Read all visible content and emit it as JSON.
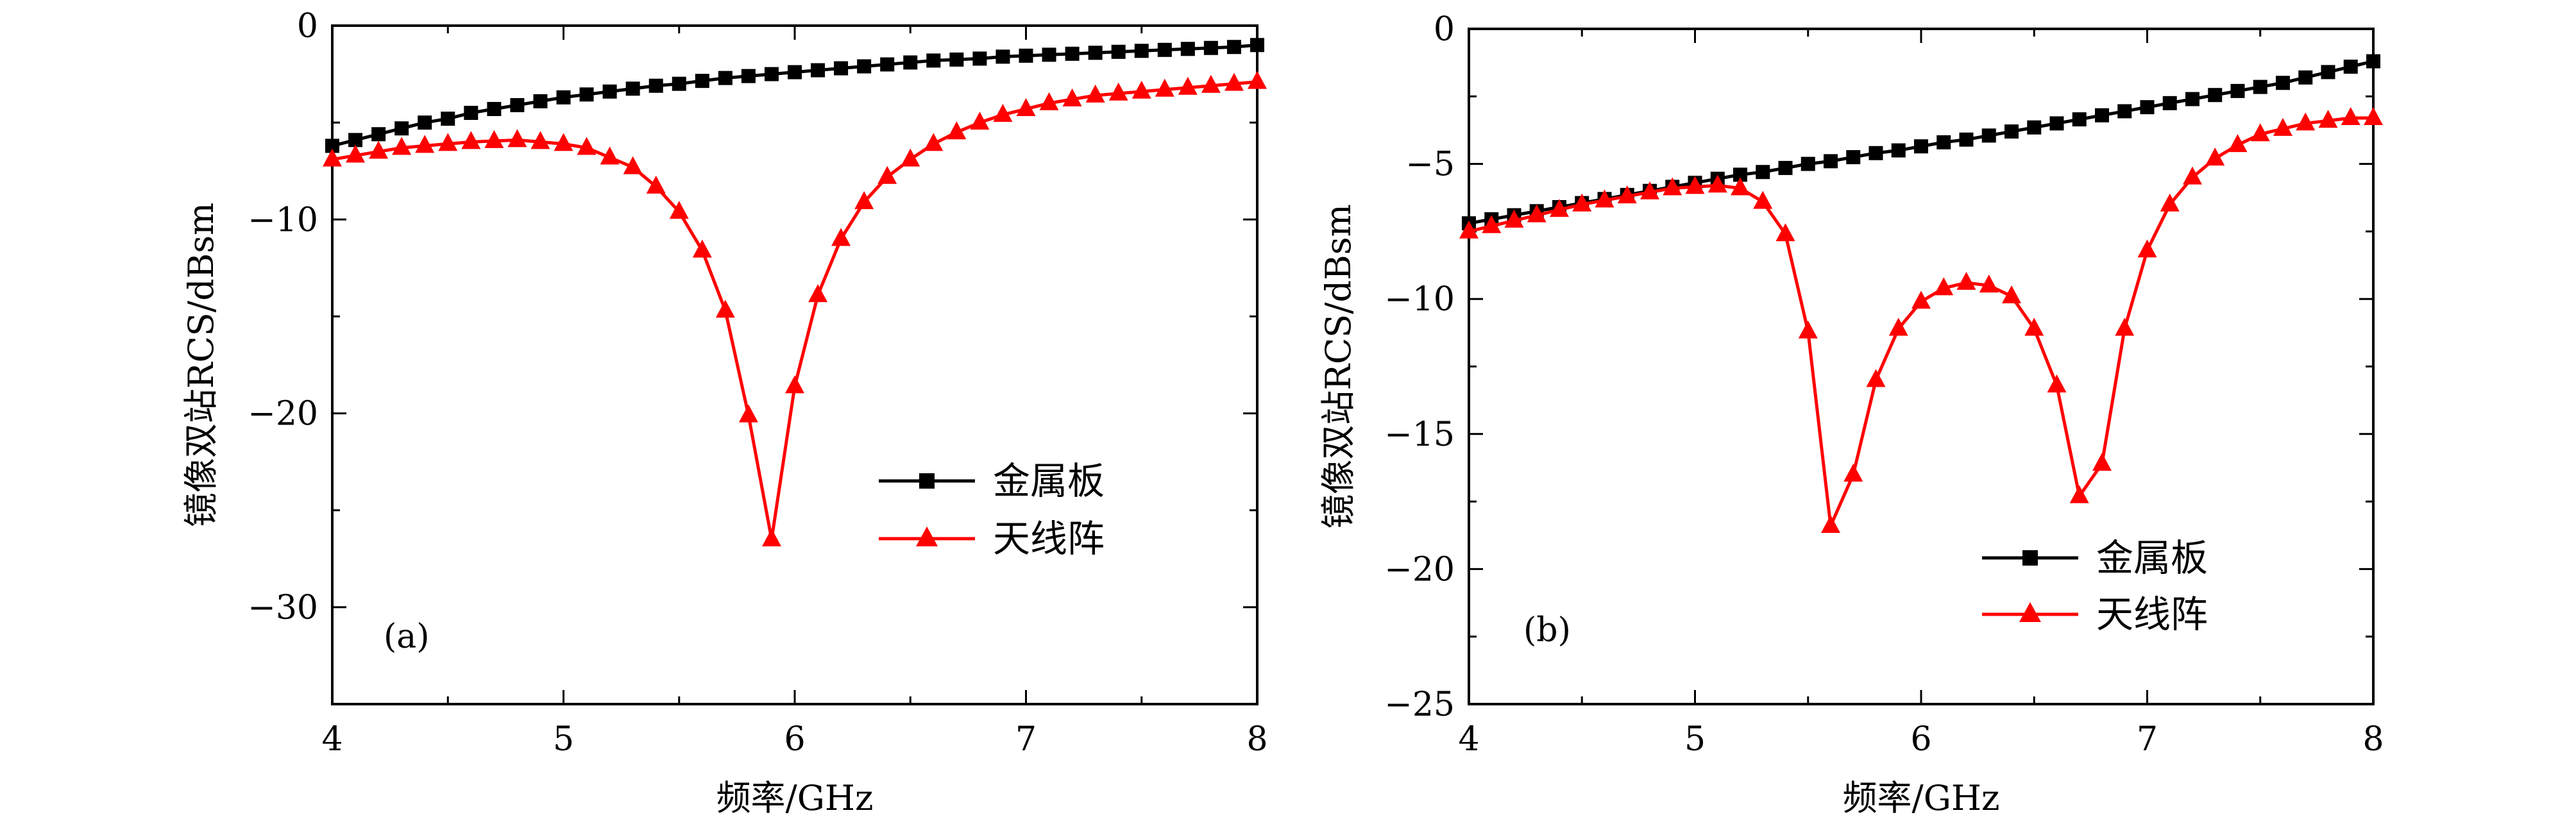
{
  "chart_data": [
    {
      "type": "line",
      "panel_label": "(a)",
      "xlabel": "频率/GHz",
      "ylabel": "镜像双站RCS/dBsm",
      "xlim": [
        4,
        8
      ],
      "ylim": [
        -35,
        0
      ],
      "xticks": [
        4,
        5,
        6,
        7,
        8
      ],
      "yticks": [
        0,
        -10,
        -20,
        -30
      ],
      "legend_position": "center-right",
      "series": [
        {
          "name": "金属板",
          "color": "#000000",
          "marker": "square",
          "x": [
            4.0,
            4.1,
            4.2,
            4.3,
            4.4,
            4.5,
            4.6,
            4.7,
            4.8,
            4.9,
            5.0,
            5.1,
            5.2,
            5.3,
            5.4,
            5.5,
            5.6,
            5.7,
            5.8,
            5.9,
            6.0,
            6.1,
            6.2,
            6.3,
            6.4,
            6.5,
            6.6,
            6.7,
            6.8,
            6.9,
            7.0,
            7.1,
            7.2,
            7.3,
            7.4,
            7.5,
            7.6,
            7.7,
            7.8,
            7.9,
            8.0
          ],
          "y": [
            -6.2,
            -5.9,
            -5.6,
            -5.3,
            -5.0,
            -4.8,
            -4.5,
            -4.3,
            -4.1,
            -3.9,
            -3.7,
            -3.55,
            -3.4,
            -3.25,
            -3.1,
            -3.0,
            -2.85,
            -2.7,
            -2.6,
            -2.5,
            -2.4,
            -2.3,
            -2.2,
            -2.1,
            -2.0,
            -1.9,
            -1.8,
            -1.75,
            -1.7,
            -1.6,
            -1.55,
            -1.5,
            -1.45,
            -1.4,
            -1.35,
            -1.3,
            -1.25,
            -1.2,
            -1.15,
            -1.1,
            -1.0
          ]
        },
        {
          "name": "天线阵",
          "color": "#ff0000",
          "marker": "triangle",
          "x": [
            4.0,
            4.1,
            4.2,
            4.3,
            4.4,
            4.5,
            4.6,
            4.7,
            4.8,
            4.9,
            5.0,
            5.1,
            5.2,
            5.3,
            5.4,
            5.5,
            5.6,
            5.7,
            5.8,
            5.9,
            6.0,
            6.1,
            6.2,
            6.3,
            6.4,
            6.5,
            6.6,
            6.7,
            6.8,
            6.9,
            7.0,
            7.1,
            7.2,
            7.3,
            7.4,
            7.5,
            7.6,
            7.7,
            7.8,
            7.9,
            8.0
          ],
          "y": [
            -6.9,
            -6.7,
            -6.5,
            -6.3,
            -6.2,
            -6.1,
            -6.0,
            -5.95,
            -5.9,
            -6.0,
            -6.1,
            -6.3,
            -6.8,
            -7.3,
            -8.3,
            -9.6,
            -11.6,
            -14.7,
            -20.1,
            -26.5,
            -18.6,
            -13.9,
            -11.0,
            -9.1,
            -7.8,
            -6.9,
            -6.1,
            -5.5,
            -5.0,
            -4.6,
            -4.3,
            -4.0,
            -3.8,
            -3.6,
            -3.5,
            -3.4,
            -3.3,
            -3.2,
            -3.1,
            -3.0,
            -2.9
          ]
        }
      ]
    },
    {
      "type": "line",
      "panel_label": "(b)",
      "xlabel": "频率/GHz",
      "ylabel": "镜像双站RCS/dBsm",
      "xlim": [
        4,
        8
      ],
      "ylim": [
        -25,
        0
      ],
      "xticks": [
        4,
        5,
        6,
        7,
        8
      ],
      "yticks": [
        0,
        -5,
        -10,
        -15,
        -20,
        -25
      ],
      "legend_position": "bottom-right",
      "series": [
        {
          "name": "金属板",
          "color": "#000000",
          "marker": "square",
          "x": [
            4.0,
            4.1,
            4.2,
            4.3,
            4.4,
            4.5,
            4.6,
            4.7,
            4.8,
            4.9,
            5.0,
            5.1,
            5.2,
            5.3,
            5.4,
            5.5,
            5.6,
            5.7,
            5.8,
            5.9,
            6.0,
            6.1,
            6.2,
            6.3,
            6.4,
            6.5,
            6.6,
            6.7,
            6.8,
            6.9,
            7.0,
            7.1,
            7.2,
            7.3,
            7.4,
            7.5,
            7.6,
            7.7,
            7.8,
            7.9,
            8.0
          ],
          "y": [
            -7.2,
            -7.05,
            -6.9,
            -6.75,
            -6.6,
            -6.45,
            -6.3,
            -6.15,
            -6.0,
            -5.85,
            -5.7,
            -5.55,
            -5.4,
            -5.3,
            -5.15,
            -5.0,
            -4.9,
            -4.75,
            -4.6,
            -4.5,
            -4.35,
            -4.2,
            -4.1,
            -3.95,
            -3.8,
            -3.65,
            -3.5,
            -3.35,
            -3.2,
            -3.05,
            -2.9,
            -2.75,
            -2.6,
            -2.45,
            -2.3,
            -2.15,
            -2.0,
            -1.8,
            -1.6,
            -1.4,
            -1.2
          ]
        },
        {
          "name": "天线阵",
          "color": "#ff0000",
          "marker": "triangle",
          "x": [
            4.0,
            4.1,
            4.2,
            4.3,
            4.4,
            4.5,
            4.6,
            4.7,
            4.8,
            4.9,
            5.0,
            5.1,
            5.2,
            5.3,
            5.4,
            5.5,
            5.6,
            5.7,
            5.8,
            5.9,
            6.0,
            6.1,
            6.2,
            6.3,
            6.4,
            6.5,
            6.6,
            6.7,
            6.8,
            6.9,
            7.0,
            7.1,
            7.2,
            7.3,
            7.4,
            7.5,
            7.6,
            7.7,
            7.8,
            7.9,
            8.0
          ],
          "y": [
            -7.5,
            -7.3,
            -7.1,
            -6.9,
            -6.7,
            -6.5,
            -6.35,
            -6.2,
            -6.05,
            -5.9,
            -5.85,
            -5.8,
            -5.9,
            -6.4,
            -7.6,
            -11.2,
            -18.4,
            -16.5,
            -13.0,
            -11.1,
            -10.1,
            -9.6,
            -9.4,
            -9.5,
            -9.9,
            -11.1,
            -13.2,
            -17.3,
            -16.1,
            -11.1,
            -8.2,
            -6.5,
            -5.5,
            -4.8,
            -4.3,
            -3.9,
            -3.7,
            -3.5,
            -3.4,
            -3.3,
            -3.3
          ]
        }
      ]
    }
  ]
}
